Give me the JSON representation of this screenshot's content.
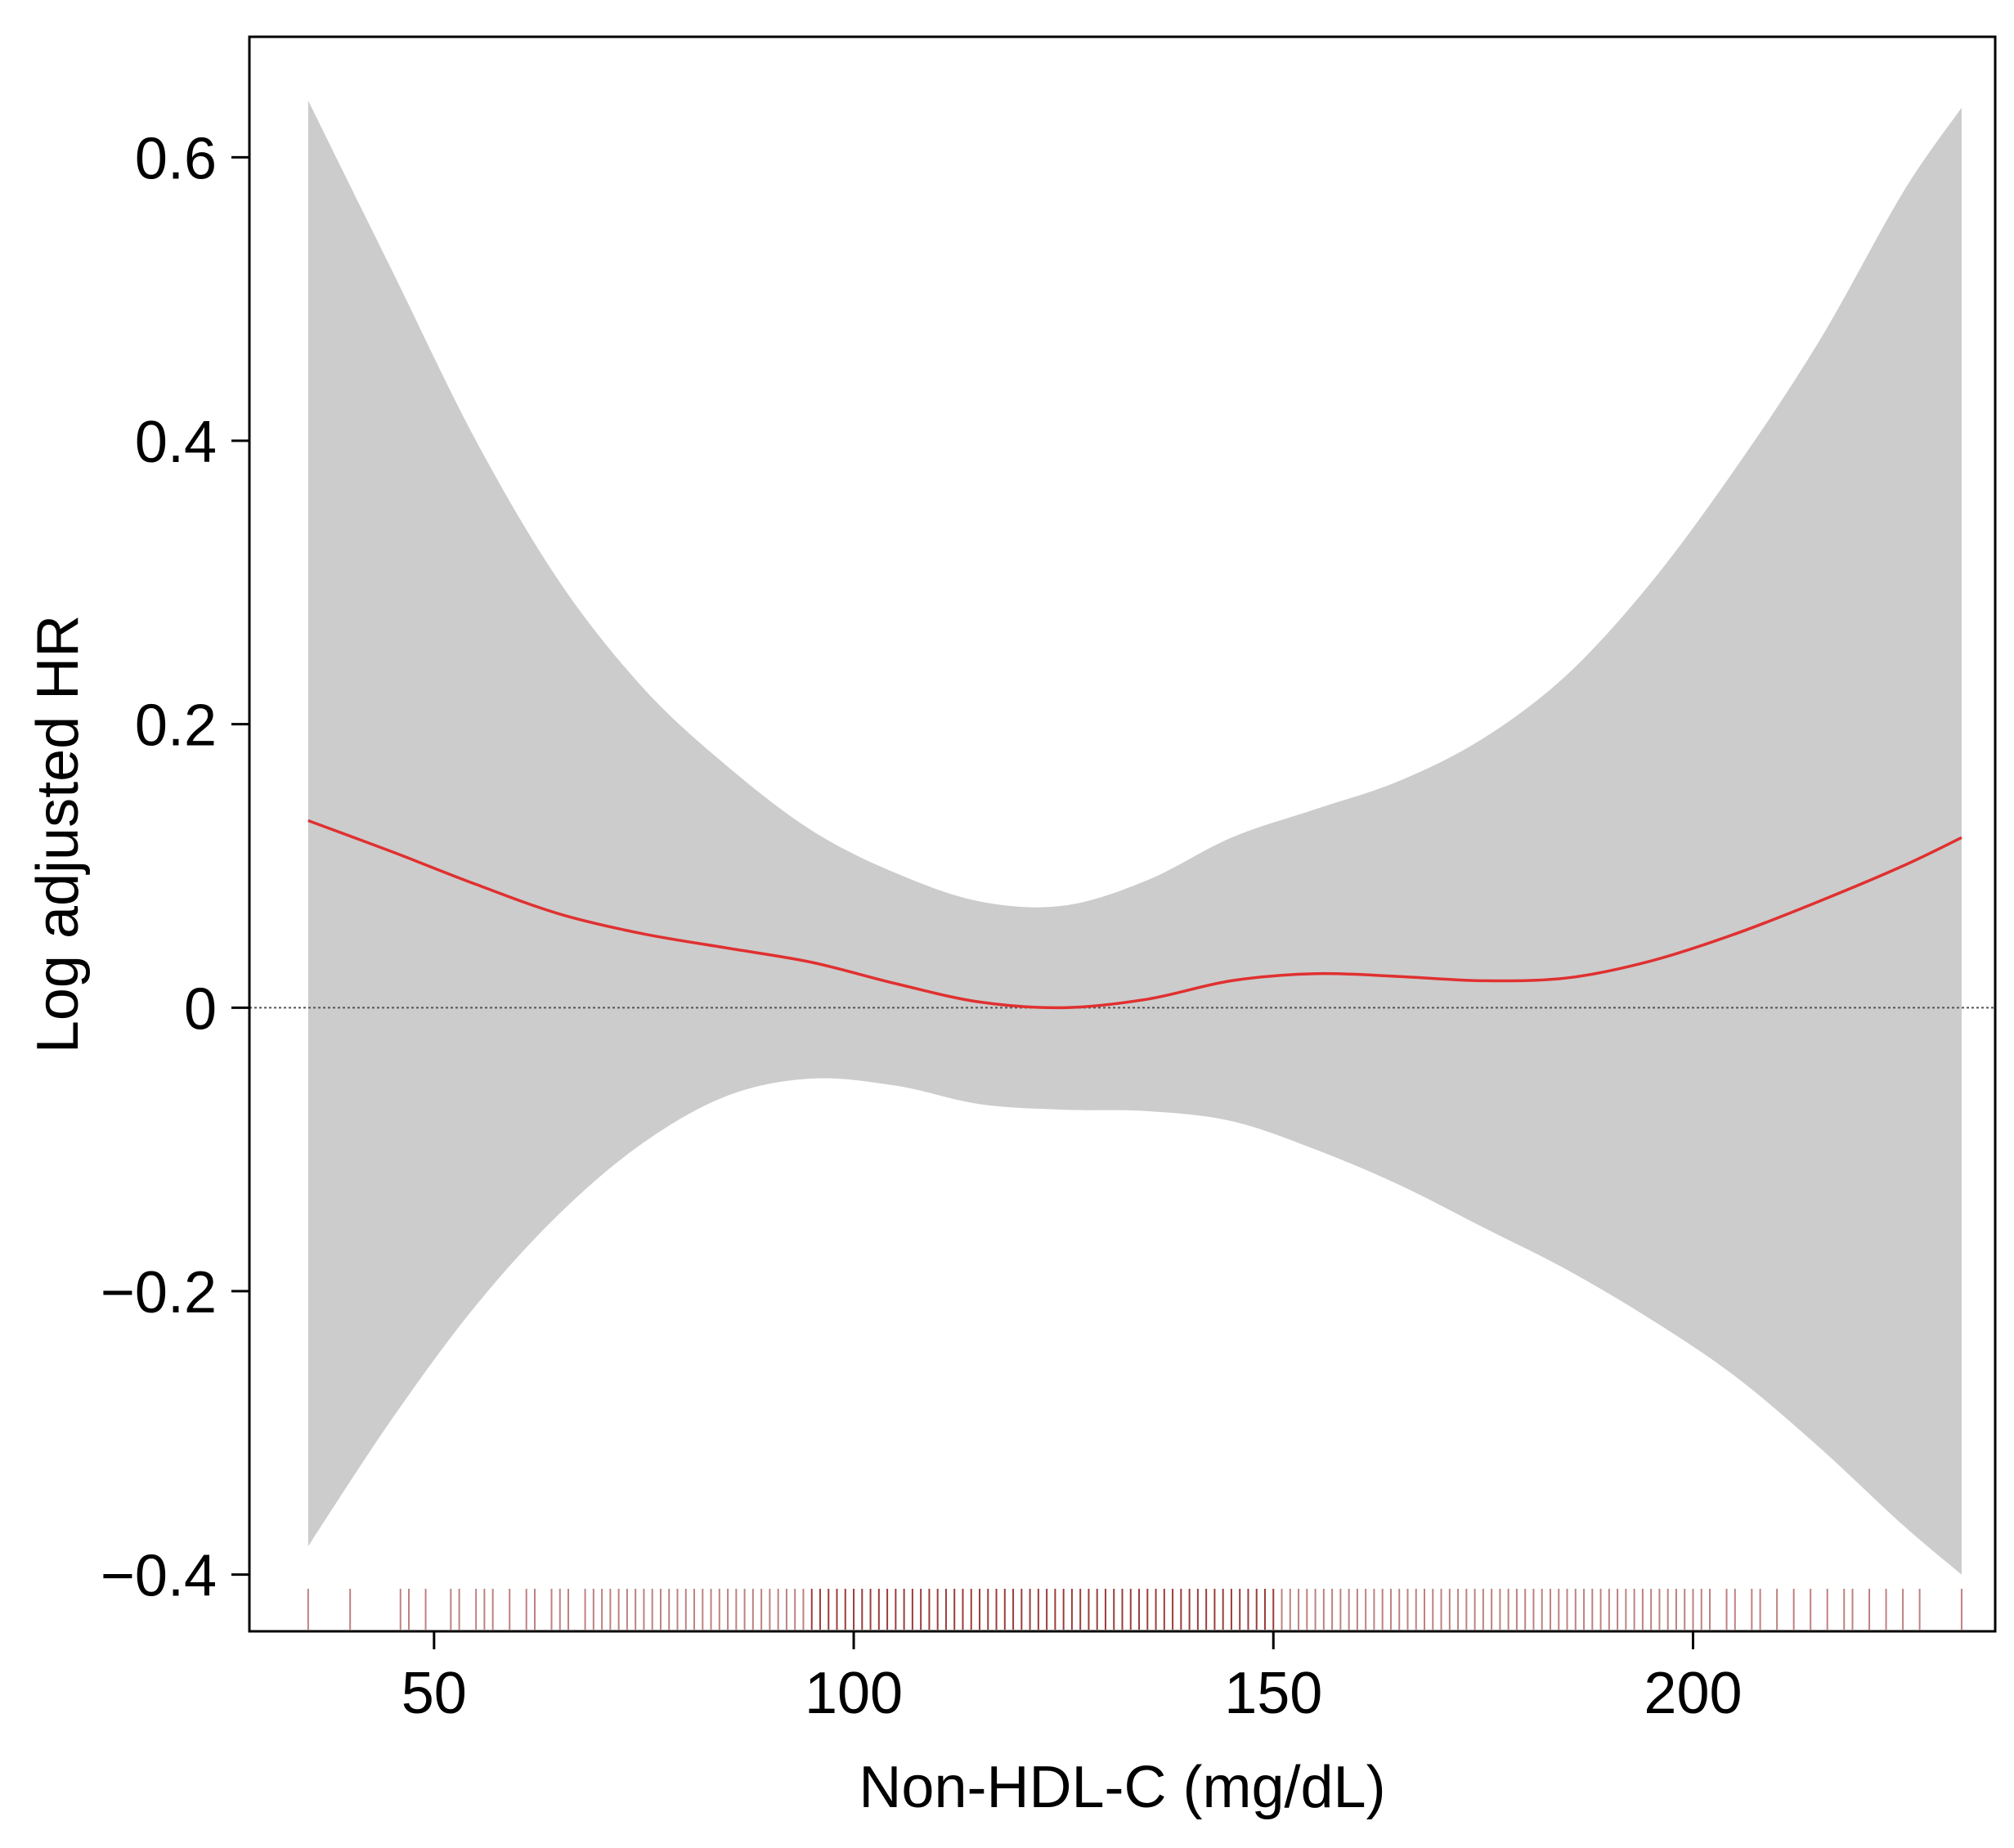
{
  "chart_data": {
    "type": "line",
    "title": "",
    "xlabel": "Non-HDL-C (mg/dL)",
    "ylabel": "Log adjusted HR",
    "xlim": [
      28,
      236
    ],
    "ylim": [
      -0.44,
      0.685
    ],
    "x_ticks": [
      {
        "value": 50,
        "label": "50"
      },
      {
        "value": 100,
        "label": "100"
      },
      {
        "value": 150,
        "label": "150"
      },
      {
        "value": 200,
        "label": "200"
      }
    ],
    "y_ticks": [
      {
        "value": -0.4,
        "label": "−0.4"
      },
      {
        "value": -0.2,
        "label": "−0.2"
      },
      {
        "value": 0,
        "label": "0"
      },
      {
        "value": 0.2,
        "label": "0.2"
      },
      {
        "value": 0.4,
        "label": "0.4"
      },
      {
        "value": 0.6,
        "label": "0.6"
      }
    ],
    "reference_line": {
      "y": 0,
      "style": "dotted",
      "color": "#555555"
    },
    "series": [
      {
        "kind": "line",
        "color": "#e03030",
        "x": [
          35,
          45,
          55,
          65,
          75,
          85,
          95,
          105,
          115,
          125,
          135,
          145,
          155,
          165,
          175,
          185,
          195,
          205,
          215,
          225,
          232
        ],
        "y": [
          0.132,
          0.11,
          0.087,
          0.066,
          0.052,
          0.042,
          0.032,
          0.017,
          0.004,
          0.0,
          0.006,
          0.019,
          0.024,
          0.022,
          0.019,
          0.021,
          0.033,
          0.052,
          0.075,
          0.1,
          0.12
        ]
      },
      {
        "kind": "band",
        "color": "#cccccc",
        "x": [
          35,
          45,
          55,
          65,
          75,
          85,
          95,
          105,
          115,
          125,
          135,
          145,
          155,
          165,
          175,
          185,
          195,
          205,
          215,
          225,
          232
        ],
        "upper": [
          0.64,
          0.52,
          0.4,
          0.3,
          0.225,
          0.17,
          0.125,
          0.095,
          0.075,
          0.072,
          0.09,
          0.12,
          0.14,
          0.16,
          0.19,
          0.235,
          0.3,
          0.38,
          0.47,
          0.575,
          0.635
        ],
        "lower": [
          -0.38,
          -0.29,
          -0.21,
          -0.145,
          -0.095,
          -0.062,
          -0.05,
          -0.055,
          -0.068,
          -0.072,
          -0.073,
          -0.08,
          -0.1,
          -0.125,
          -0.155,
          -0.185,
          -0.22,
          -0.26,
          -0.31,
          -0.365,
          -0.4
        ]
      }
    ],
    "rug": {
      "color": "#8b1a1a",
      "positions": [
        35,
        40,
        46,
        47,
        49,
        52,
        53,
        55,
        56,
        57,
        59,
        61,
        62,
        64,
        65,
        66,
        68,
        69,
        70,
        71,
        72,
        73,
        74,
        75,
        76,
        77,
        78,
        79,
        80,
        81,
        82,
        83,
        84,
        85,
        86,
        87,
        88,
        89,
        90,
        91,
        92,
        93,
        94,
        95,
        96,
        97,
        98,
        99,
        100,
        101,
        102,
        103,
        104,
        105,
        106,
        107,
        108,
        109,
        110,
        111,
        112,
        113,
        114,
        115,
        116,
        117,
        118,
        119,
        120,
        121,
        122,
        123,
        124,
        125,
        126,
        127,
        128,
        129,
        130,
        131,
        132,
        133,
        134,
        135,
        136,
        137,
        138,
        139,
        140,
        141,
        142,
        143,
        144,
        145,
        146,
        147,
        148,
        149,
        150,
        151,
        152,
        153,
        154,
        155,
        156,
        157,
        158,
        159,
        160,
        161,
        162,
        163,
        164,
        165,
        166,
        167,
        168,
        169,
        170,
        171,
        172,
        173,
        174,
        175,
        176,
        177,
        178,
        179,
        180,
        181,
        182,
        183,
        184,
        185,
        186,
        187,
        188,
        189,
        190,
        191,
        192,
        193,
        194,
        195,
        196,
        197,
        198,
        199,
        200,
        201,
        202,
        204,
        205,
        207,
        208,
        210,
        212,
        214,
        216,
        218,
        219,
        221,
        223,
        225,
        227,
        232
      ]
    },
    "grid": false,
    "legend": "none"
  }
}
